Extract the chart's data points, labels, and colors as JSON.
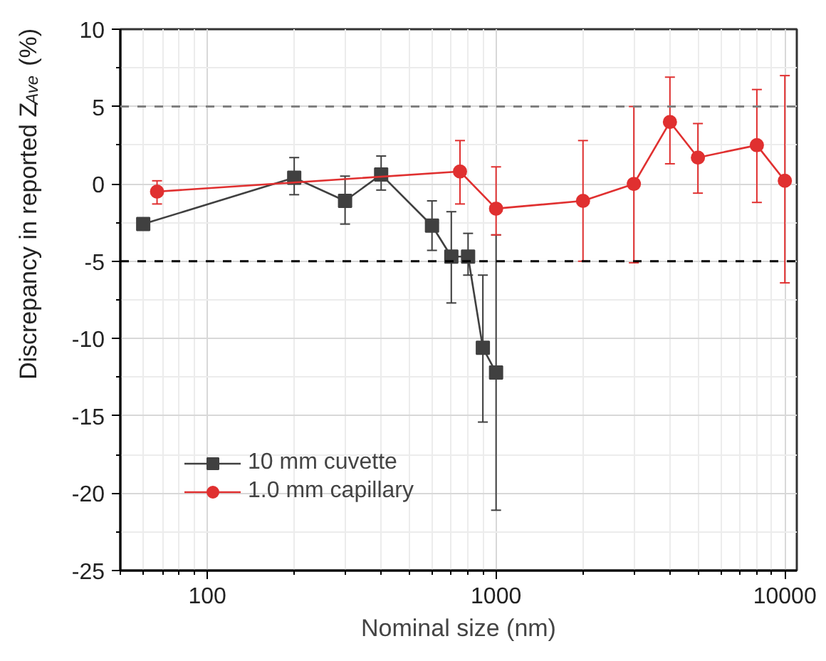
{
  "chart_data": {
    "type": "line",
    "xlabel": "Nominal size (nm)",
    "ylabel": "Discrepancy in reported Z$_{Ave}$ (%)",
    "log": "x",
    "xlim": [
      50,
      11000
    ],
    "xticks": [
      100,
      1000,
      10000
    ],
    "ylim": [
      -25,
      10
    ],
    "yticks": [
      -25,
      -20,
      -15,
      -10,
      -5,
      0,
      5,
      10
    ],
    "grid": true,
    "legend": "bottom left",
    "line_style": "solid",
    "ref_lines": [
      {
        "axis": "y",
        "value": 5,
        "color": "#808080",
        "line_style": "dashed"
      },
      {
        "axis": "y",
        "value": -5,
        "color": "#000000",
        "line_style": "dashed"
      }
    ],
    "series": [
      {
        "name": "10 mm cuvette",
        "color": "#404040",
        "marker": "square",
        "x": [
          60,
          200,
          300,
          400,
          600,
          700,
          800,
          900,
          1000
        ],
        "values": [
          -2.6,
          0.4,
          -1.1,
          0.6,
          -2.7,
          -4.7,
          -4.7,
          -10.6,
          -12.2
        ],
        "errors": [
          null,
          [
            -0.7,
            1.7
          ],
          [
            -2.6,
            0.5
          ],
          [
            -0.4,
            1.8
          ],
          [
            -4.3,
            -1.1
          ],
          [
            -7.7,
            -1.8
          ],
          [
            -5.9,
            -3.2
          ],
          [
            -15.4,
            -5.9
          ],
          [
            -21.1,
            -3.3
          ]
        ]
      },
      {
        "name": "1.0 mm capillary",
        "color": "#e03030",
        "marker": "circle",
        "x": [
          67,
          750,
          1000,
          2000,
          3000,
          4000,
          5000,
          8000,
          10000
        ],
        "values": [
          -0.5,
          0.8,
          -1.6,
          -1.1,
          0.0,
          4.0,
          1.7,
          2.5,
          0.2
        ],
        "errors": [
          [
            -1.3,
            0.2
          ],
          [
            -1.3,
            2.8
          ],
          [
            -3.3,
            1.1
          ],
          [
            -5.0,
            2.8
          ],
          [
            -5.1,
            5.0
          ],
          [
            1.3,
            6.9
          ],
          [
            -0.6,
            3.9
          ],
          [
            -1.2,
            6.1
          ],
          [
            -6.4,
            7.0
          ]
        ]
      }
    ]
  }
}
